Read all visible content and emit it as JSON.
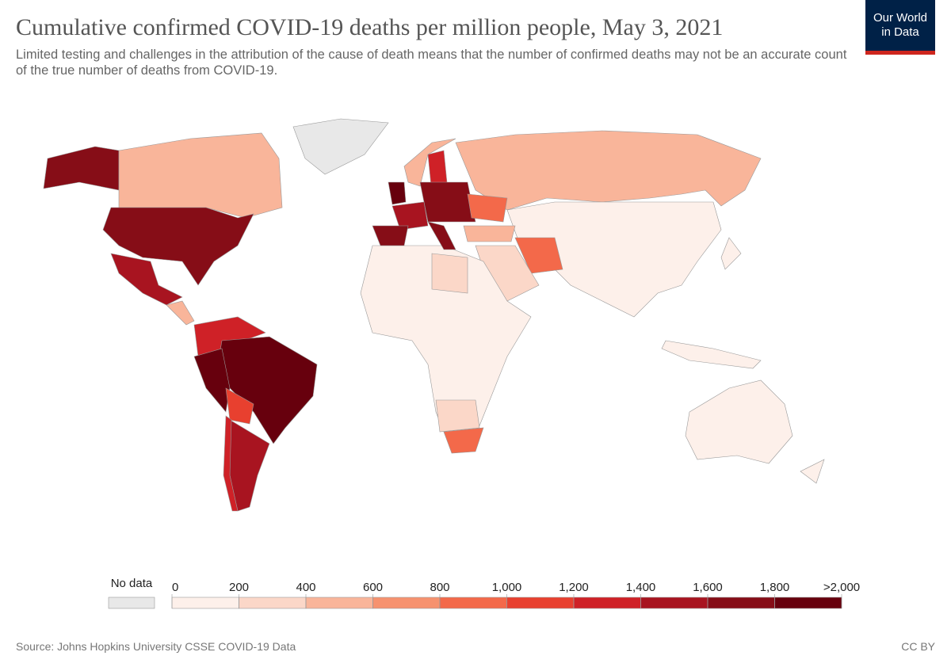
{
  "map": {
    "title": "Cumulative confirmed COVID-19 deaths per million people, May 3, 2021",
    "subtitle": "Limited testing and challenges in the attribution of the cause of death means that the number of confirmed deaths may not be an accurate count of the true number of deaths from COVID-19.",
    "logo": [
      "Our World",
      "in Data"
    ],
    "legend": {
      "no_data_label": "No data",
      "no_data_color": "#e8e8e8",
      "ticks": [
        0,
        200,
        400,
        600,
        800,
        {
          "value": 1000,
          "label": "1,000"
        },
        {
          "value": 1200,
          "label": "1,200"
        },
        {
          "value": 1400,
          "label": "1,400"
        },
        {
          "value": 1600,
          "label": "1,600"
        },
        {
          "value": 1800,
          "label": "1,800"
        },
        {
          "value": 2000,
          "label": ">2,000"
        }
      ],
      "colors": [
        "#fdf0ea",
        "#fbd7c8",
        "#f9b59a",
        "#f6926f",
        "#f3694a",
        "#e8402f",
        "#cf2127",
        "#a81420",
        "#860d17",
        "#67000d"
      ]
    },
    "source": "Source: Johns Hopkins University CSSE COVID-19 Data",
    "license": "CC BY"
  }
}
